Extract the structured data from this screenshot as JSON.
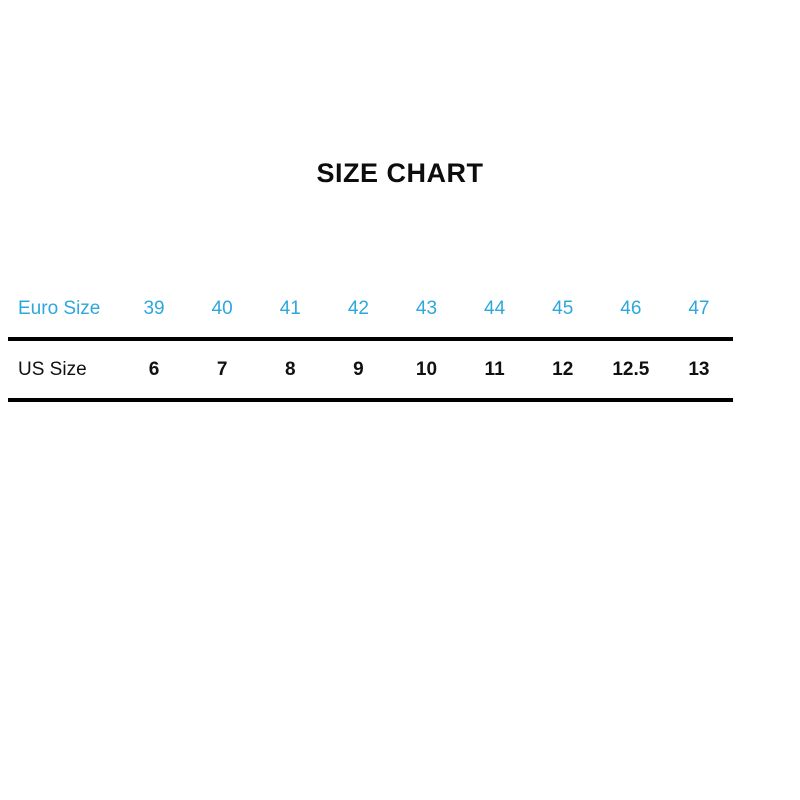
{
  "title": "SIZE CHART",
  "table": {
    "rows": [
      {
        "label": "Euro Size",
        "values": [
          "39",
          "40",
          "41",
          "42",
          "43",
          "44",
          "45",
          "46",
          "47"
        ]
      },
      {
        "label": "US Size",
        "values": [
          "6",
          "7",
          "8",
          "9",
          "10",
          "11",
          "12",
          "12.5",
          "13"
        ]
      }
    ]
  },
  "colors": {
    "euro_text": "#2da7dc",
    "us_text": "#111111",
    "title_text": "#0d0d0d",
    "rule": "#000000",
    "background": "#ffffff"
  },
  "chart_data": {
    "type": "table",
    "title": "SIZE CHART",
    "rows": [
      {
        "header": "Euro Size",
        "values": [
          39,
          40,
          41,
          42,
          43,
          44,
          45,
          46,
          47
        ]
      },
      {
        "header": "US Size",
        "values": [
          6,
          7,
          8,
          9,
          10,
          11,
          12,
          12.5,
          13
        ]
      }
    ],
    "layout": "two-row conversion table, header column on left, thick black rule between rows and below last row"
  }
}
